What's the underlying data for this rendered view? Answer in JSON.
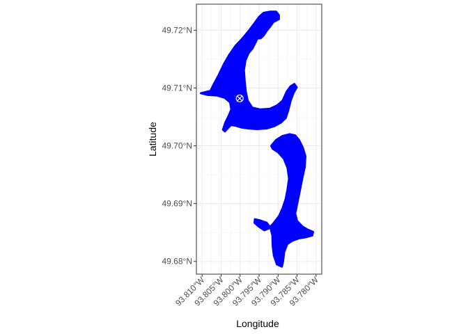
{
  "chart_data": {
    "type": "map",
    "xlabel": "Longitude",
    "ylabel": "Latitude",
    "xlim": [
      -93.8115,
      -93.7785
    ],
    "ylim": [
      49.6778,
      49.7245
    ],
    "x_ticks": [
      {
        "value": -93.81,
        "label": "93.810°W"
      },
      {
        "value": -93.805,
        "label": "93.805°W"
      },
      {
        "value": -93.8,
        "label": "93.800°W"
      },
      {
        "value": -93.795,
        "label": "93.795°W"
      },
      {
        "value": -93.79,
        "label": "93.790°W"
      },
      {
        "value": -93.785,
        "label": "93.785°W"
      },
      {
        "value": -93.78,
        "label": "93.780°W"
      }
    ],
    "y_ticks": [
      {
        "value": 49.68,
        "label": "49.68°N"
      },
      {
        "value": 49.69,
        "label": "49.69°N"
      },
      {
        "value": 49.7,
        "label": "49.70°N"
      },
      {
        "value": 49.71,
        "label": "49.71°N"
      },
      {
        "value": 49.72,
        "label": "49.72°N"
      }
    ],
    "grid": true,
    "polygon_fill": "#0000ff",
    "marker": {
      "lon": -93.8001,
      "lat": 49.7082,
      "symbol": "circle-x"
    },
    "polygons": [
      [
        [
          -93.8103,
          49.7091
        ],
        [
          -93.8078,
          49.7095
        ],
        [
          -93.8068,
          49.7108
        ],
        [
          -93.8056,
          49.7123
        ],
        [
          -93.8042,
          49.7142
        ],
        [
          -93.8028,
          49.7158
        ],
        [
          -93.8012,
          49.7173
        ],
        [
          -93.7996,
          49.7184
        ],
        [
          -93.7978,
          49.7198
        ],
        [
          -93.7962,
          49.7212
        ],
        [
          -93.795,
          49.7223
        ],
        [
          -93.7938,
          49.723
        ],
        [
          -93.7922,
          49.7232
        ],
        [
          -93.7905,
          49.7232
        ],
        [
          -93.7898,
          49.7226
        ],
        [
          -93.7898,
          49.7219
        ],
        [
          -93.7913,
          49.7214
        ],
        [
          -93.792,
          49.7207
        ],
        [
          -93.793,
          49.7199
        ],
        [
          -93.7938,
          49.7191
        ],
        [
          -93.7946,
          49.7186
        ],
        [
          -93.7954,
          49.7186
        ],
        [
          -93.796,
          49.7178
        ],
        [
          -93.7968,
          49.7168
        ],
        [
          -93.7978,
          49.716
        ],
        [
          -93.7986,
          49.7148
        ],
        [
          -93.799,
          49.7131
        ],
        [
          -93.7988,
          49.7112
        ],
        [
          -93.7985,
          49.7094
        ],
        [
          -93.798,
          49.7078
        ],
        [
          -93.7968,
          49.7066
        ],
        [
          -93.7948,
          49.7063
        ],
        [
          -93.7922,
          49.7064
        ],
        [
          -93.7902,
          49.707
        ],
        [
          -93.7888,
          49.7078
        ],
        [
          -93.7877,
          49.7094
        ],
        [
          -93.7867,
          49.7103
        ],
        [
          -93.7857,
          49.7107
        ],
        [
          -93.7851,
          49.7101
        ],
        [
          -93.7859,
          49.7092
        ],
        [
          -93.7867,
          49.7078
        ],
        [
          -93.7874,
          49.706
        ],
        [
          -93.788,
          49.7048
        ],
        [
          -93.7893,
          49.704
        ],
        [
          -93.791,
          49.7034
        ],
        [
          -93.793,
          49.703
        ],
        [
          -93.7955,
          49.7029
        ],
        [
          -93.7978,
          49.703
        ],
        [
          -93.7998,
          49.7032
        ],
        [
          -93.8013,
          49.7035
        ],
        [
          -93.8024,
          49.7036
        ],
        [
          -93.8033,
          49.703
        ],
        [
          -93.804,
          49.7025
        ],
        [
          -93.8045,
          49.7028
        ],
        [
          -93.8039,
          49.704
        ],
        [
          -93.803,
          49.7052
        ],
        [
          -93.8023,
          49.7063
        ],
        [
          -93.8026,
          49.7075
        ],
        [
          -93.804,
          49.7083
        ],
        [
          -93.806,
          49.7087
        ],
        [
          -93.8085,
          49.7088
        ]
      ],
      [
        [
          -93.7918,
          49.7
        ],
        [
          -93.7905,
          49.701
        ],
        [
          -93.7888,
          49.7017
        ],
        [
          -93.787,
          49.702
        ],
        [
          -93.7855,
          49.7018
        ],
        [
          -93.7845,
          49.701
        ],
        [
          -93.7835,
          49.6997
        ],
        [
          -93.7828,
          49.6982
        ],
        [
          -93.783,
          49.6963
        ],
        [
          -93.7836,
          49.6945
        ],
        [
          -93.7842,
          49.6925
        ],
        [
          -93.7848,
          49.6905
        ],
        [
          -93.7855,
          49.6883
        ],
        [
          -93.785,
          49.687
        ],
        [
          -93.7835,
          49.686
        ],
        [
          -93.7822,
          49.6855
        ],
        [
          -93.7808,
          49.6851
        ],
        [
          -93.781,
          49.6845
        ],
        [
          -93.7826,
          49.6842
        ],
        [
          -93.7845,
          49.684
        ],
        [
          -93.7862,
          49.6836
        ],
        [
          -93.7876,
          49.683
        ],
        [
          -93.7884,
          49.6816
        ],
        [
          -93.7887,
          49.68
        ],
        [
          -93.789,
          49.6791
        ],
        [
          -93.7903,
          49.6795
        ],
        [
          -93.7911,
          49.681
        ],
        [
          -93.7914,
          49.6826
        ],
        [
          -93.7915,
          49.6845
        ],
        [
          -93.792,
          49.6858
        ],
        [
          -93.793,
          49.6867
        ],
        [
          -93.7948,
          49.6871
        ],
        [
          -93.7961,
          49.6873
        ],
        [
          -93.7962,
          49.6867
        ],
        [
          -93.795,
          49.686
        ],
        [
          -93.7936,
          49.6854
        ],
        [
          -93.7925,
          49.6857
        ],
        [
          -93.7912,
          49.6866
        ],
        [
          -93.7897,
          49.6879
        ],
        [
          -93.7888,
          49.6892
        ],
        [
          -93.788,
          49.6908
        ],
        [
          -93.7875,
          49.6925
        ],
        [
          -93.7871,
          49.6943
        ],
        [
          -93.7875,
          49.6962
        ],
        [
          -93.7885,
          49.6978
        ],
        [
          -93.79,
          49.6989
        ],
        [
          -93.7914,
          49.6995
        ]
      ]
    ]
  }
}
